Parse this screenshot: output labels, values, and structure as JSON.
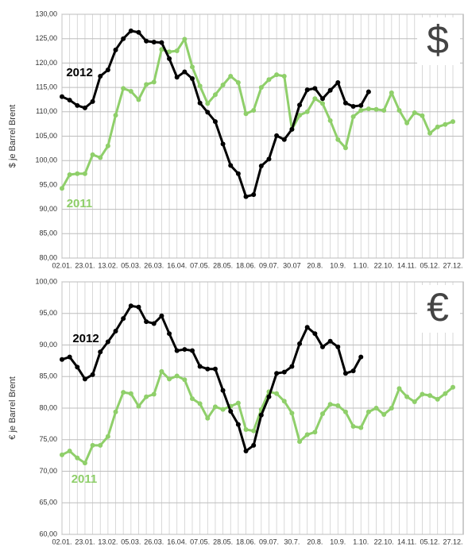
{
  "chart_data": [
    {
      "type": "line",
      "symbol": "$",
      "ylabel": "$ je Barrel  Brent",
      "categories": [
        "02.01.",
        null,
        null,
        "23.01.",
        null,
        null,
        "13.02.",
        null,
        null,
        "05.03.",
        null,
        null,
        "26.03.",
        null,
        null,
        "16.04.",
        null,
        null,
        "07.05.",
        null,
        null,
        "28.05.",
        null,
        null,
        "18.06.",
        null,
        null,
        "09.07.",
        null,
        null,
        "30.07",
        null,
        null,
        "20.8.",
        null,
        null,
        "10.9.",
        null,
        null,
        "1.10.",
        null,
        null,
        "22.10.",
        null,
        null,
        "14.11.",
        null,
        null,
        "05.12.",
        null,
        null,
        "27.12."
      ],
      "ylim": [
        80,
        130
      ],
      "yticks": [
        {
          "value": 80,
          "label": "80,00"
        },
        {
          "value": 85,
          "label": "85,00"
        },
        {
          "value": 90,
          "label": "90,00"
        },
        {
          "value": 95,
          "label": "95,00"
        },
        {
          "value": 100,
          "label": "100,00"
        },
        {
          "value": 105,
          "label": "105,00"
        },
        {
          "value": 110,
          "label": "110,00"
        },
        {
          "value": 115,
          "label": "115,00"
        },
        {
          "value": 120,
          "label": "120,00"
        },
        {
          "value": 125,
          "label": "125,00"
        },
        {
          "value": 130,
          "label": "130,00"
        }
      ],
      "grid": true,
      "series": [
        {
          "name": "2011",
          "color": "#8fcf6a",
          "values": [
            94.3,
            97.1,
            97.3,
            97.3,
            101.2,
            100.6,
            103,
            109.3,
            114.8,
            114.2,
            112.5,
            115.6,
            116.1,
            122.8,
            122.3,
            122.5,
            124.9,
            119.2,
            115.3,
            111.7,
            113.5,
            115.5,
            117.3,
            116,
            109.6,
            110.3,
            115,
            116.6,
            117.6,
            117.3,
            106.4,
            109.3,
            110,
            112.7,
            111.7,
            108.2,
            104.3,
            102.6,
            109,
            110.3,
            110.6,
            110.5,
            110.3,
            113.9,
            110.3,
            107.7,
            109.8,
            109.2,
            105.6,
            106.9,
            107.4,
            108
          ]
        },
        {
          "name": "2012",
          "color": "#000000",
          "values": [
            113.1,
            112.4,
            111.3,
            110.8,
            112.1,
            117.3,
            118.6,
            122.7,
            125,
            126.6,
            126.3,
            124.5,
            124.3,
            124.2,
            120.9,
            117.1,
            118.2,
            116.8,
            111.8,
            109.9,
            108,
            103.4,
            99,
            97.3,
            92.6,
            93,
            98.9,
            100.3,
            105.1,
            104.3,
            106.4,
            111.4,
            114.5,
            114.8,
            112.7,
            114.4,
            116,
            111.8,
            111.1,
            111.3,
            114.1,
            null,
            null,
            null,
            null,
            null,
            null,
            null,
            null,
            null,
            null,
            null
          ]
        }
      ]
    },
    {
      "type": "line",
      "symbol": "€",
      "ylabel": "€ je Barrel Brent",
      "categories": [
        "02.01.",
        null,
        null,
        "23.01.",
        null,
        null,
        "13.02.",
        null,
        null,
        "05.03.",
        null,
        null,
        "26.03.",
        null,
        null,
        "16.04.",
        null,
        null,
        "07.05.",
        null,
        null,
        "28.05.",
        null,
        null,
        "18.06.",
        null,
        null,
        "09.07.",
        null,
        null,
        "30.7.",
        null,
        null,
        "20.8.",
        null,
        null,
        "10.9.",
        null,
        null,
        "1.10.",
        null,
        null,
        "22.10.",
        null,
        null,
        "14.11.",
        null,
        null,
        "05.12.",
        null,
        null,
        "27.12."
      ],
      "ylim": [
        60,
        100
      ],
      "yticks": [
        {
          "value": 60,
          "label": "60,00"
        },
        {
          "value": 65,
          "label": "65,00"
        },
        {
          "value": 70,
          "label": "70,00"
        },
        {
          "value": 75,
          "label": "75,00"
        },
        {
          "value": 80,
          "label": "80,00"
        },
        {
          "value": 85,
          "label": "85,00"
        },
        {
          "value": 90,
          "label": "90,00"
        },
        {
          "value": 95,
          "label": "95,00"
        },
        {
          "value": 100,
          "label": "100,00"
        }
      ],
      "grid": true,
      "series": [
        {
          "name": "2011",
          "color": "#8fcf6a",
          "values": [
            72.6,
            73.2,
            72.1,
            71.3,
            74.1,
            74.1,
            75.5,
            79.4,
            82.5,
            82.3,
            80.3,
            81.8,
            82.2,
            85.8,
            84.6,
            85.1,
            84.5,
            81.5,
            80.7,
            78.4,
            80.2,
            79.8,
            80.3,
            80.8,
            76.6,
            76.4,
            79.8,
            82.6,
            82.3,
            81.1,
            79.2,
            74.7,
            75.8,
            76.2,
            79.1,
            80.6,
            80.4,
            79.4,
            77.1,
            76.9,
            79.4,
            80,
            79,
            80,
            83.1,
            81.8,
            81,
            82.2,
            82,
            81.4,
            82.3,
            83.3
          ]
        },
        {
          "name": "2012",
          "color": "#000000",
          "values": [
            87.7,
            88.1,
            86.5,
            84.6,
            85.3,
            88.9,
            90.5,
            92.2,
            94.2,
            96.2,
            96,
            93.7,
            93.4,
            94.6,
            91.8,
            89.1,
            89.3,
            89.1,
            86.6,
            86.2,
            86.2,
            82.8,
            79.5,
            77.4,
            73.2,
            74.1,
            78.9,
            81.8,
            85.5,
            85.7,
            86.6,
            90.2,
            92.8,
            91.8,
            89.7,
            90.6,
            89.7,
            85.5,
            85.9,
            88.1,
            null,
            null,
            null,
            null,
            null,
            null,
            null,
            null,
            null,
            null,
            null,
            null
          ]
        }
      ]
    }
  ]
}
